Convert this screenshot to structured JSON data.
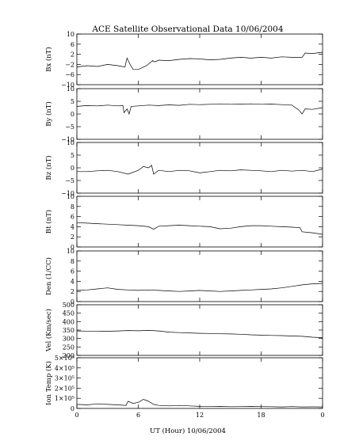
{
  "chart_data": {
    "type": "line",
    "title": "ACE Satellite Observational Data   10/06/2004",
    "xlabel": "UT (Hour)  10/06/2004",
    "x_ticks": [
      "0",
      "6",
      "12",
      "18",
      "0"
    ],
    "x_range": [
      0,
      24
    ],
    "grid": false,
    "panels": [
      {
        "ylabel": "Bx (nT)",
        "ylim": [
          -10,
          10
        ],
        "y_ticks": [
          {
            "v": 10,
            "label": "10"
          },
          {
            "v": 6,
            "label": "6"
          },
          {
            "v": 2,
            "label": "2"
          },
          {
            "v": -2,
            "label": "−2"
          },
          {
            "v": -6,
            "label": "−6"
          },
          {
            "v": -10,
            "label": "−10"
          }
        ],
        "series": [
          {
            "x": [
              0,
              1,
              2,
              3,
              4,
              4.7,
              4.9,
              5.2,
              5.5,
              6,
              6.8,
              7.4,
              7.6,
              8,
              9,
              10,
              11,
              12,
              13,
              14,
              15,
              16,
              17,
              18,
              19,
              20,
              21,
              22,
              22.3,
              23,
              24
            ],
            "y": [
              -3,
              -2.5,
              -2.8,
              -2,
              -2.5,
              -3,
              0.5,
              -2,
              -4,
              -4,
              -2.5,
              -0.5,
              -1,
              -0.3,
              -0.5,
              0,
              0.3,
              0.2,
              -0.2,
              0,
              0.5,
              0.8,
              0.5,
              0.8,
              0.5,
              1,
              0.8,
              0.8,
              2.5,
              2.3,
              2.8
            ]
          }
        ]
      },
      {
        "ylabel": "By (nT)",
        "ylim": [
          -10,
          10
        ],
        "y_ticks": [
          {
            "v": 10,
            "label": "10"
          },
          {
            "v": 5,
            "label": "5"
          },
          {
            "v": 0,
            "label": "0"
          },
          {
            "v": -5,
            "label": "−5"
          },
          {
            "v": -10,
            "label": "−10"
          }
        ],
        "series": [
          {
            "x": [
              0,
              1,
              2,
              3,
              4,
              4.5,
              4.6,
              4.9,
              5.1,
              5.3,
              6,
              7,
              8,
              9,
              10,
              11,
              12,
              13,
              14,
              15,
              16,
              17,
              18,
              19,
              20,
              21,
              21.7,
              22,
              22.3,
              23,
              24
            ],
            "y": [
              3,
              3.3,
              3.2,
              3.5,
              3.2,
              3.3,
              0.5,
              2,
              0,
              3,
              3.2,
              3.5,
              3.3,
              3.6,
              3.4,
              3.8,
              3.7,
              3.8,
              4,
              3.8,
              3.9,
              4,
              3.8,
              3.9,
              3.7,
              3.5,
              1.5,
              0,
              2,
              1.8,
              2.5
            ]
          }
        ]
      },
      {
        "ylabel": "Bz (nT)",
        "ylim": [
          -10,
          10
        ],
        "y_ticks": [
          {
            "v": 10,
            "label": "10"
          },
          {
            "v": 5,
            "label": "5"
          },
          {
            "v": 0,
            "label": "0"
          },
          {
            "v": -5,
            "label": "−5"
          },
          {
            "v": -10,
            "label": "−10"
          }
        ],
        "series": [
          {
            "x": [
              0,
              1,
              2,
              3,
              4,
              5,
              6,
              6.5,
              7,
              7.3,
              7.5,
              8,
              9,
              10,
              11,
              12,
              13,
              14,
              15,
              16,
              17,
              18,
              19,
              20,
              21,
              22,
              23,
              24
            ],
            "y": [
              -1.5,
              -1.5,
              -1.2,
              -1,
              -1.5,
              -2.5,
              -1,
              0.5,
              0,
              1,
              -2.5,
              -1,
              -1.5,
              -1,
              -1.2,
              -2,
              -1.5,
              -1,
              -1.2,
              -0.8,
              -1,
              -1.2,
              -1.5,
              -1,
              -1.3,
              -1,
              -1.5,
              -0.5
            ]
          }
        ]
      },
      {
        "ylabel": "Bt (nT)",
        "ylim": [
          0,
          10
        ],
        "y_ticks": [
          {
            "v": 10,
            "label": "10"
          },
          {
            "v": 8,
            "label": "8"
          },
          {
            "v": 6,
            "label": "6"
          },
          {
            "v": 4,
            "label": "4"
          },
          {
            "v": 2,
            "label": "2"
          },
          {
            "v": 0,
            "label": "0"
          }
        ],
        "series": [
          {
            "x": [
              0,
              1,
              2,
              3,
              4,
              5,
              6,
              7,
              7.5,
              8,
              9,
              10,
              11,
              12,
              13,
              14,
              15,
              16,
              17,
              18,
              19,
              20,
              21,
              21.8,
              22,
              23,
              24
            ],
            "y": [
              4.8,
              4.7,
              4.6,
              4.5,
              4.4,
              4.3,
              4.2,
              4,
              3.5,
              4.1,
              4.2,
              4.3,
              4.2,
              4.1,
              4,
              3.6,
              3.7,
              4,
              4.2,
              4.2,
              4.1,
              4,
              3.9,
              3.8,
              3,
              2.8,
              2.5
            ]
          }
        ]
      },
      {
        "ylabel": "Den (1/CC)",
        "ylim": [
          0,
          10
        ],
        "y_ticks": [
          {
            "v": 10,
            "label": "10"
          },
          {
            "v": 8,
            "label": "8"
          },
          {
            "v": 6,
            "label": "6"
          },
          {
            "v": 4,
            "label": "4"
          },
          {
            "v": 2,
            "label": "2"
          },
          {
            "v": 0,
            "label": "0"
          }
        ],
        "series": [
          {
            "x": [
              0,
              1,
              2,
              3,
              4,
              5,
              6,
              7,
              8,
              9,
              10,
              11,
              12,
              13,
              14,
              15,
              16,
              17,
              18,
              19,
              20,
              21,
              22,
              23,
              24
            ],
            "y": [
              2.2,
              2.3,
              2.5,
              2.7,
              2.4,
              2.3,
              2.2,
              2.3,
              2.2,
              2.1,
              2,
              2.1,
              2.2,
              2.1,
              2,
              2.1,
              2.2,
              2.3,
              2.4,
              2.5,
              2.7,
              3,
              3.3,
              3.5,
              3.6
            ]
          }
        ]
      },
      {
        "ylabel": "Vel (Km/sec)",
        "ylim": [
          200,
          500
        ],
        "y_ticks": [
          {
            "v": 500,
            "label": "500"
          },
          {
            "v": 450,
            "label": "450"
          },
          {
            "v": 400,
            "label": "400"
          },
          {
            "v": 350,
            "label": "350"
          },
          {
            "v": 300,
            "label": "300"
          },
          {
            "v": 250,
            "label": "250"
          },
          {
            "v": 200,
            "label": "200"
          }
        ],
        "series": [
          {
            "x": [
              0,
              1,
              2,
              3,
              4,
              5,
              6,
              7,
              8,
              9,
              10,
              11,
              12,
              13,
              14,
              15,
              16,
              17,
              18,
              19,
              20,
              21,
              22,
              23,
              24
            ],
            "y": [
              345,
              344,
              342,
              343,
              345,
              347,
              346,
              348,
              345,
              338,
              335,
              333,
              331,
              330,
              328,
              327,
              325,
              322,
              320,
              318,
              317,
              315,
              313,
              308,
              305
            ]
          }
        ]
      },
      {
        "ylabel": "Ion Temp (K)",
        "ylim": [
          0,
          500000
        ],
        "y_ticks": [
          {
            "v": 500000,
            "label": "5×10⁵"
          },
          {
            "v": 400000,
            "label": "4×10⁵"
          },
          {
            "v": 300000,
            "label": "3×10⁵"
          },
          {
            "v": 200000,
            "label": "2×10⁵"
          },
          {
            "v": 100000,
            "label": "1×10⁵"
          },
          {
            "v": 0,
            "label": "0"
          }
        ],
        "series": [
          {
            "x": [
              0,
              1,
              2,
              3,
              4,
              4.8,
              5,
              5.5,
              6,
              6.5,
              7,
              7.5,
              8,
              9,
              10,
              11,
              12,
              13,
              14,
              15,
              16,
              17,
              18,
              19,
              20,
              21,
              22,
              23,
              24
            ],
            "y": [
              40000,
              35000,
              45000,
              40000,
              35000,
              30000,
              70000,
              50000,
              60000,
              90000,
              70000,
              40000,
              30000,
              25000,
              30000,
              25000,
              20000,
              18000,
              20000,
              17000,
              18000,
              20000,
              18000,
              17000,
              15000,
              18000,
              15000,
              16000,
              15000
            ]
          }
        ]
      }
    ]
  }
}
